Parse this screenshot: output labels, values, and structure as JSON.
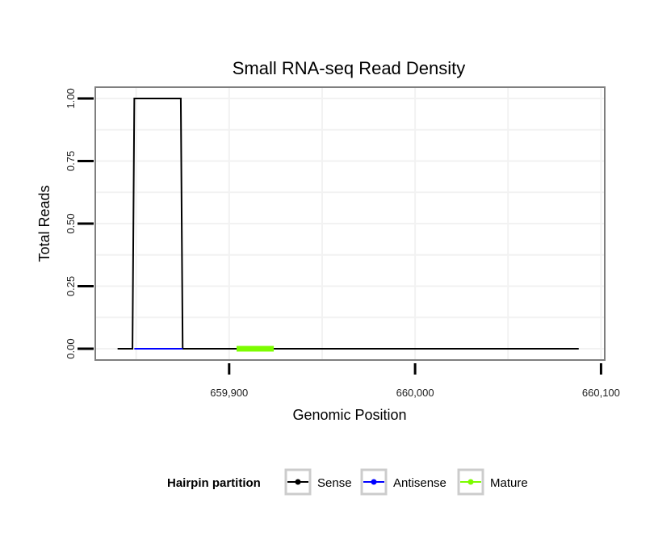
{
  "chart_data": {
    "type": "line",
    "title": "Small RNA-seq Read Density",
    "xlabel": "Genomic Position",
    "ylabel": "Total Reads",
    "xlim": [
      659828,
      660102
    ],
    "ylim": [
      -0.045,
      1.045
    ],
    "x_ticks": [
      {
        "value": 659900,
        "label": "659,900"
      },
      {
        "value": 660000,
        "label": "660,000"
      },
      {
        "value": 660100,
        "label": "660,100"
      }
    ],
    "y_ticks": [
      {
        "value": 0,
        "label": "0.00"
      },
      {
        "value": 0.25,
        "label": "0.25"
      },
      {
        "value": 0.5,
        "label": "0.50"
      },
      {
        "value": 0.75,
        "label": "0.75"
      },
      {
        "value": 1,
        "label": "1.00"
      }
    ],
    "grid": true,
    "series": [
      {
        "name": "Sense",
        "color": "#000000",
        "x": [
          659840,
          659848,
          659849,
          659874,
          659875,
          660088
        ],
        "y": [
          0,
          0,
          1,
          1,
          0,
          0
        ]
      },
      {
        "name": "Antisense",
        "color": "#0000ff",
        "x": [
          659849,
          659875
        ],
        "y": [
          0,
          0
        ]
      },
      {
        "name": "Mature",
        "color": "#7cfc00",
        "x": [
          659904,
          659924
        ],
        "y": [
          0,
          0
        ]
      }
    ],
    "legend": {
      "title": "Hairpin partition",
      "position": "bottom",
      "entries": [
        {
          "label": "Sense",
          "color": "#000000"
        },
        {
          "label": "Antisense",
          "color": "#0000ff"
        },
        {
          "label": "Mature",
          "color": "#7cfc00"
        }
      ]
    }
  }
}
